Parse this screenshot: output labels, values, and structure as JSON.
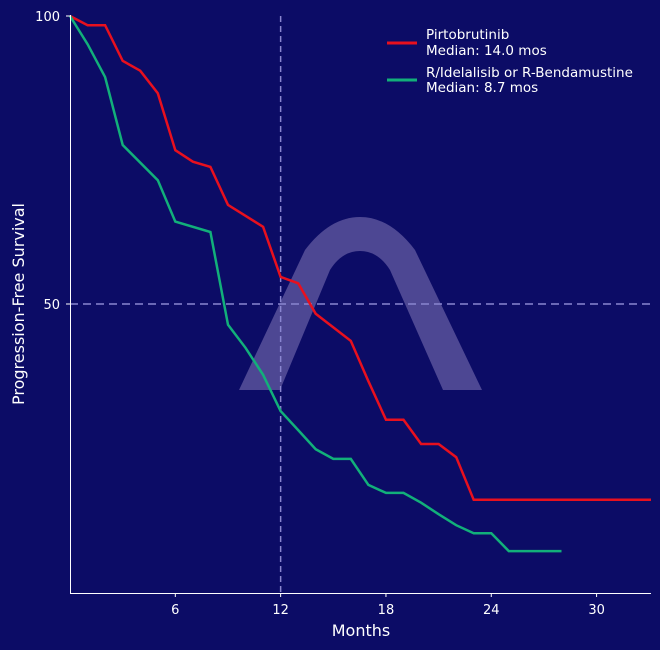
{
  "chart_data": {
    "type": "line",
    "title": "",
    "xlabel": "Months",
    "ylabel": "Progression-Free Survival",
    "xlim": [
      0,
      33.1
    ],
    "ylim": [
      0,
      100
    ],
    "x_ticks": [
      6,
      12,
      18,
      24,
      30
    ],
    "y_ticks": [
      50,
      100
    ],
    "reference_lines": {
      "x": 12,
      "y": 50
    },
    "grid": false,
    "legend_position": "top-right",
    "background_color": "#0c0c66",
    "series": [
      {
        "name": "Pirtobrutinib",
        "legend_line2": "Median: 14.0 mos",
        "color": "#e8101e",
        "x": [
          0,
          1,
          2,
          3,
          4,
          5,
          6,
          7,
          8,
          9,
          11,
          12,
          13,
          14,
          16,
          17,
          18,
          19,
          20,
          21,
          22,
          23,
          33.1
        ],
        "y": [
          100,
          98.4,
          98.4,
          92.2,
          90.5,
          86.6,
          76.7,
          74.7,
          73.8,
          67.2,
          63.4,
          54.7,
          53.6,
          48.3,
          43.6,
          36.6,
          29.9,
          29.9,
          25.7,
          25.7,
          23.4,
          16.0,
          16.0
        ]
      },
      {
        "name": "R/Idelalisib or R-Bendamustine",
        "legend_line2": "Median: 8.7 mos",
        "color": "#12b07a",
        "x": [
          0,
          1,
          2,
          3,
          5,
          6,
          8,
          9,
          10,
          11,
          12,
          13,
          14,
          15,
          16,
          17,
          18,
          19,
          20,
          21,
          22,
          23,
          24,
          25,
          28
        ],
        "y": [
          100,
          95.1,
          89.4,
          77.6,
          71.5,
          64.3,
          62.5,
          46.4,
          42.4,
          37.7,
          31.4,
          28.1,
          24.8,
          23.1,
          23.1,
          18.6,
          17.2,
          17.2,
          15.5,
          13.5,
          11.6,
          10.2,
          10.2,
          7.1,
          7.1
        ]
      }
    ]
  }
}
